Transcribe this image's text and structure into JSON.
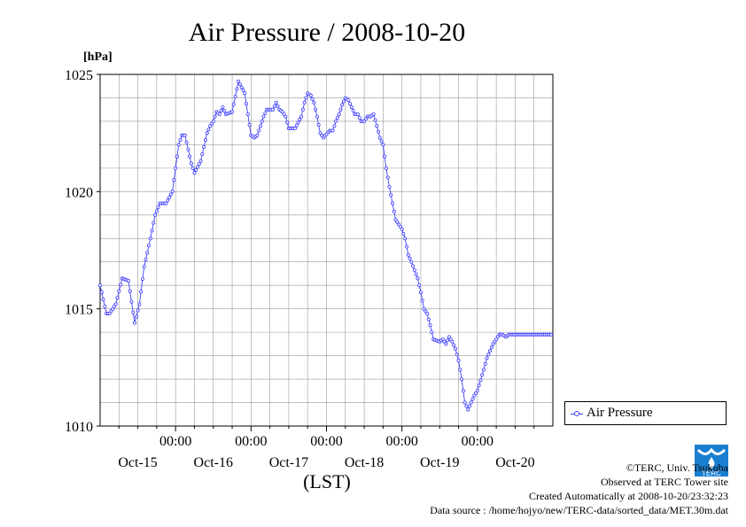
{
  "chart_data": {
    "type": "line",
    "title": "Air Pressure / 2008-10-20",
    "ylabel": "[hPa]",
    "xlabel": "(LST)",
    "ylim": [
      1010,
      1025
    ],
    "yticks": [
      1010,
      1015,
      1020,
      1025
    ],
    "xlim_hours": [
      0,
      144
    ],
    "x_time_labels": [
      "00:00",
      "00:00",
      "00:00",
      "00:00",
      "00:00"
    ],
    "x_time_hours": [
      24,
      48,
      72,
      96,
      120
    ],
    "x_date_labels": [
      "Oct-15",
      "Oct-16",
      "Oct-17",
      "Oct-18",
      "Oct-19",
      "Oct-20"
    ],
    "x_date_hours": [
      12,
      36,
      60,
      84,
      108,
      132
    ],
    "grid": true,
    "legend_position": "right",
    "series": [
      {
        "name": "Air Pressure",
        "color": "#4040ff",
        "x_hours": [
          0,
          2,
          3,
          5,
          7,
          9,
          11,
          12.5,
          14,
          16,
          17.5,
          19,
          21,
          23,
          25,
          26,
          27,
          28,
          29,
          30,
          32,
          34,
          35,
          36,
          37,
          38,
          39,
          40,
          42,
          44,
          46,
          48,
          49,
          50,
          52,
          53,
          55,
          56,
          57,
          58,
          59,
          60,
          62,
          64,
          65,
          66,
          67,
          68,
          69,
          70,
          71,
          73,
          74,
          75,
          76,
          77,
          78,
          79,
          81,
          82,
          83,
          84,
          85,
          86,
          87,
          89,
          90,
          91,
          92,
          93,
          94,
          95,
          96,
          97,
          98,
          99,
          101,
          102,
          103,
          104,
          105,
          106,
          108,
          109,
          110,
          111,
          112,
          113,
          114,
          115,
          116,
          117,
          118,
          119,
          120,
          122,
          123,
          124,
          125,
          126,
          127,
          128,
          129,
          130,
          130.5,
          131,
          132,
          133,
          134,
          135,
          136,
          137,
          138,
          139,
          140,
          141,
          142,
          142.5,
          143,
          143.5
        ],
        "values": [
          1016.0,
          1014.8,
          1014.8,
          1015.2,
          1016.3,
          1016.2,
          1014.4,
          1015.2,
          1016.8,
          1018.0,
          1019.0,
          1019.5,
          1019.5,
          1020.0,
          1022.0,
          1022.4,
          1022.4,
          1021.8,
          1021.2,
          1020.8,
          1021.3,
          1022.5,
          1022.8,
          1023.0,
          1023.4,
          1023.3,
          1023.6,
          1023.3,
          1023.4,
          1024.7,
          1024.2,
          1022.4,
          1022.3,
          1022.4,
          1023.2,
          1023.5,
          1023.5,
          1023.8,
          1023.5,
          1023.4,
          1023.2,
          1022.7,
          1022.7,
          1023.2,
          1023.8,
          1024.2,
          1024.1,
          1023.8,
          1023.2,
          1022.5,
          1022.3,
          1022.6,
          1022.6,
          1023.0,
          1023.3,
          1023.7,
          1024.0,
          1023.9,
          1023.3,
          1023.3,
          1023.0,
          1023.0,
          1023.2,
          1023.2,
          1023.3,
          1022.3,
          1022.0,
          1021.0,
          1020.2,
          1019.5,
          1018.8,
          1018.6,
          1018.4,
          1018.0,
          1017.3,
          1017.0,
          1016.3,
          1015.7,
          1015.0,
          1014.8,
          1014.3,
          1013.7,
          1013.6,
          1013.7,
          1013.5,
          1013.8,
          1013.6,
          1013.3,
          1012.8,
          1012.0,
          1011.0,
          1010.7,
          1011.0,
          1011.3,
          1011.5,
          1012.4,
          1012.9,
          1013.2,
          1013.5,
          1013.7,
          1013.9,
          1013.9,
          1013.8,
          1013.9,
          1013.9,
          1013.9,
          1013.9,
          1013.9,
          1013.9,
          1013.9,
          1013.9,
          1013.9,
          1013.9,
          1013.9,
          1013.9,
          1013.9,
          1013.9,
          1013.9,
          1013.9,
          1013.9
        ]
      }
    ]
  },
  "legend": {
    "label": "Air Pressure"
  },
  "credits": {
    "line1": "©TERC, Univ. Tsukuba",
    "line2": "Observed at TERC Tower site",
    "line3": "Created Automatically at 2008-10-20/23:32:23",
    "line4": "Data source : /home/hojyo/new/TERC-data/sorted_data/MET.30m.dat"
  },
  "logo": {
    "text": "TERC",
    "color": "#1a7fd0"
  }
}
